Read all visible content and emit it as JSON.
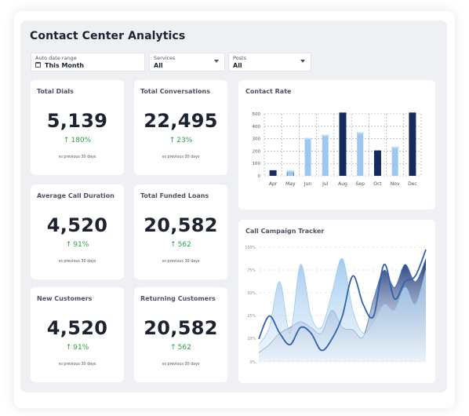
{
  "page": {
    "title": "Contact Center Analytics"
  },
  "filters": [
    {
      "label": "Auto date range",
      "value": "This Month",
      "icon": "calendar-icon"
    },
    {
      "label": "Services",
      "value": "All",
      "icon": "chevron-down-icon"
    },
    {
      "label": "Posts",
      "value": "All",
      "icon": "chevron-down-icon"
    }
  ],
  "stats": [
    {
      "label": "Total Dials",
      "value": "5,139",
      "change": "180%",
      "note": "vs previous 30 days"
    },
    {
      "label": "Total Conversations",
      "value": "22,495",
      "change": "23%",
      "note": "vs previous 30 days"
    },
    {
      "label": "Average Call Duration",
      "value": "4,520",
      "change": "91%",
      "note": "vs previous 30 days"
    },
    {
      "label": "Total Funded Loans",
      "value": "20,582",
      "change": "562",
      "note": "vs previous 30 days"
    },
    {
      "label": "New Customers",
      "value": "4,520",
      "change": "91%",
      "note": "vs previous 30 days"
    },
    {
      "label": "Returning Customers",
      "value": "20,582",
      "change": "562",
      "note": "vs previous 30 days"
    }
  ],
  "colors": {
    "accent_dark": "#172a5e",
    "accent_light": "#9cc8ef",
    "positive": "#2f9e44"
  },
  "chart_data": [
    {
      "type": "bar",
      "title": "Contact Rate",
      "categories": [
        "Apr",
        "May",
        "Jun",
        "Jul",
        "Aug",
        "Sep",
        "Oct",
        "Nov",
        "Dec"
      ],
      "series": [
        {
          "values": [
            45,
            30,
            0,
            0,
            510,
            0,
            205,
            0,
            510
          ]
        },
        {
          "values": [
            0,
            40,
            300,
            325,
            0,
            345,
            0,
            230,
            0
          ]
        }
      ],
      "ylim": [
        0,
        500
      ],
      "yticks": [
        0,
        100,
        200,
        300,
        400,
        500
      ],
      "grid": true
    },
    {
      "type": "area",
      "title": "Call Campaign Tracker",
      "yticks": [
        "0%",
        "10%",
        "25%",
        "50%",
        "75%",
        "100%"
      ],
      "series": [
        {
          "values": [
            8,
            15,
            25,
            30,
            35,
            30,
            25,
            45,
            30,
            28,
            22,
            55,
            80,
            65,
            85,
            70,
            90
          ]
        },
        {
          "values": [
            15,
            30,
            70,
            25,
            85,
            40,
            30,
            60,
            90,
            45,
            25,
            35,
            50,
            45,
            65,
            50,
            80
          ]
        },
        {
          "values": [
            20,
            40,
            25,
            15,
            30,
            25,
            10,
            20,
            40,
            75,
            50,
            40,
            85,
            55,
            70,
            75,
            98
          ]
        }
      ],
      "grid": true
    }
  ]
}
